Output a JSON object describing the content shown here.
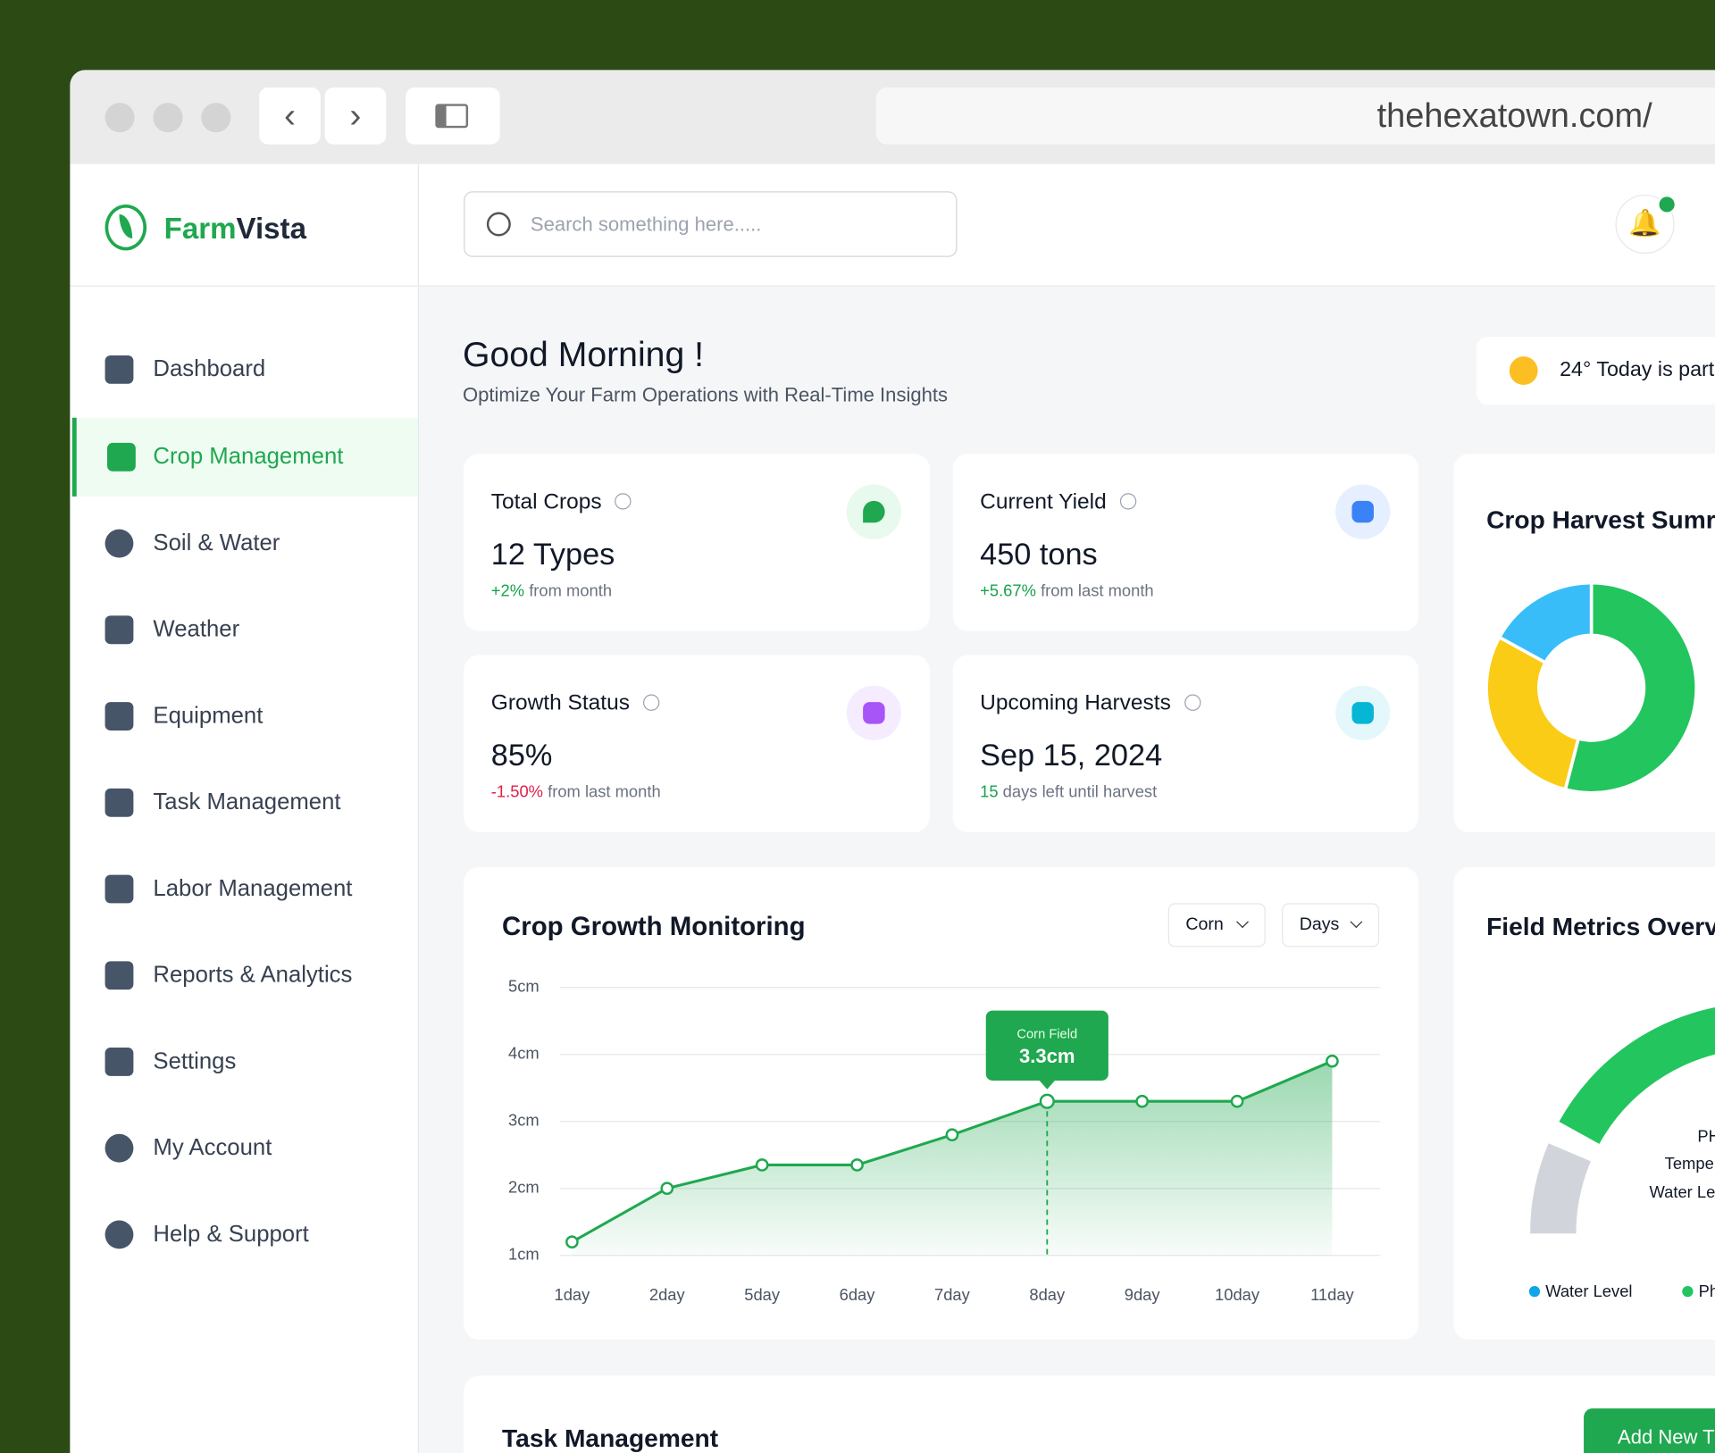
{
  "browser": {
    "url": "thehexatown.com/"
  },
  "brand": {
    "first": "Farm",
    "second": "Vista"
  },
  "search_placeholder": "Search something here.....",
  "nav": [
    "Dashboard",
    "Crop Management",
    "Soil & Water",
    "Weather",
    "Equipment",
    "Task Management",
    "Labor Management",
    "Reports & Analytics",
    "Settings",
    "My Account",
    "Help & Support"
  ],
  "greeting": {
    "title": "Good Morning !",
    "subtitle": "Optimize Your Farm Operations with Real-Time Insights"
  },
  "weather": "24° Today is partl",
  "stats": [
    {
      "title": "Total Crops",
      "value": "12 Types",
      "change": "+2%",
      "note": "from month"
    },
    {
      "title": "Current Yield",
      "value": "450 tons",
      "change": "+5.67%",
      "note": "from last month"
    },
    {
      "title": "Growth Status",
      "value": "85%",
      "change": "-1.50%",
      "note": "from last month"
    },
    {
      "title": "Upcoming Harvests",
      "value": "Sep 15, 2024",
      "change": "15",
      "note": "days left until harvest"
    }
  ],
  "chart_data": [
    {
      "type": "line",
      "title": "Crop Growth Monitoring",
      "filters": [
        "Corn",
        "Days"
      ],
      "categories": [
        "1day",
        "2day",
        "5day",
        "6day",
        "7day",
        "8day",
        "9day",
        "10day",
        "11day"
      ],
      "values": [
        1.2,
        2.0,
        2.35,
        2.35,
        2.8,
        3.3,
        3.3,
        3.3,
        3.9
      ],
      "value_labels": [
        null,
        null,
        null,
        null,
        null,
        "3.3cm",
        null,
        null,
        null
      ],
      "tooltip_title": "Corn Field",
      "color": "#1fa84f",
      "ylim": [
        1,
        5
      ],
      "yticks": [
        {
          "value": 1,
          "label": "1cm"
        },
        {
          "value": 2,
          "label": "2cm"
        },
        {
          "value": 3,
          "label": "3cm"
        },
        {
          "value": 4,
          "label": "4cm"
        },
        {
          "value": 5,
          "label": "5cm"
        }
      ],
      "grid": true
    },
    {
      "type": "pie",
      "title": "Crop Harvest Sumr",
      "values": [
        54,
        29,
        17
      ],
      "colors": [
        "#22c55e",
        "#facc15",
        "#38bdf8"
      ]
    }
  ],
  "field_metrics": {
    "title": "Field Metrics Overv",
    "labels": [
      "PH",
      "Tempe",
      "Water Le"
    ],
    "legend": [
      "Water Level",
      "Ph"
    ]
  },
  "tasks": {
    "title": "Task Management",
    "button": "Add New T"
  }
}
